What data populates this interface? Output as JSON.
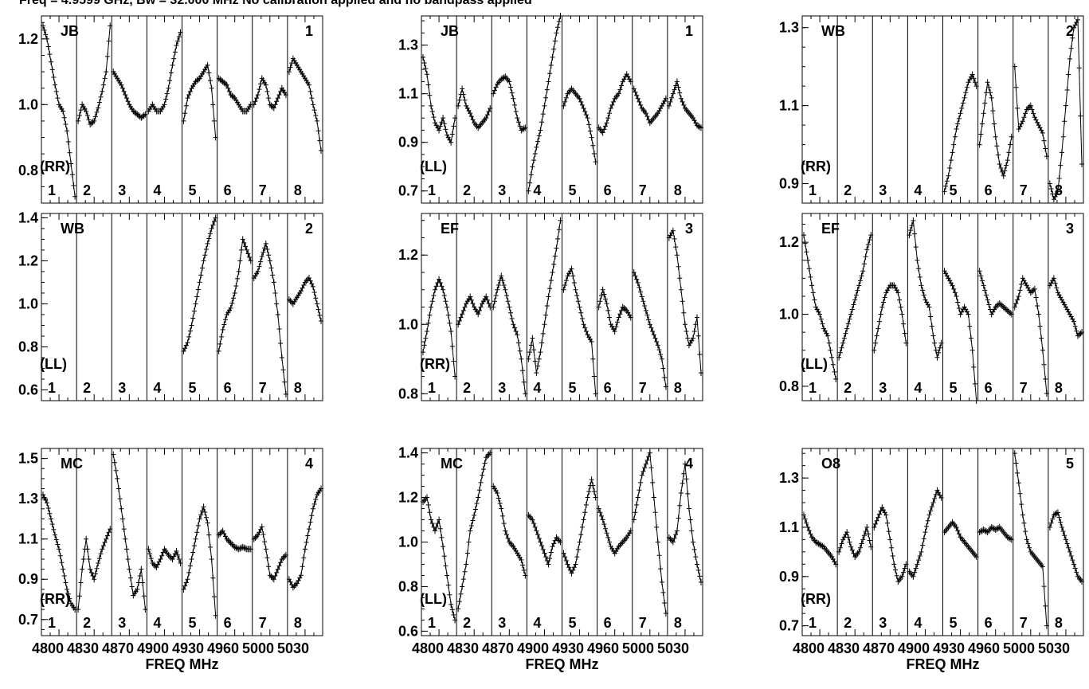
{
  "title": "Freq = 4.9599 GHz, Bw = 32.000 MHz   No calibration applied and no bandpass applied",
  "chart_data": [
    {
      "type": "line",
      "baseline": "JB",
      "stokes": "(RR)",
      "panel_id": "1",
      "ylim": [
        0.7,
        1.27
      ],
      "yticks": [
        0.8,
        1.0,
        1.2
      ],
      "grid": false,
      "xticks": [],
      "xlabel": "",
      "sub_labels": [
        "1",
        "2",
        "3",
        "4",
        "5",
        "6",
        "7",
        "8"
      ],
      "subbands": [
        [
          1.24,
          1.2,
          1.13,
          1.06,
          1.0,
          0.98,
          0.92,
          0.82,
          0.72
        ],
        [
          0.95,
          1.0,
          0.98,
          0.94,
          0.95,
          0.99,
          1.04,
          1.1,
          1.24
        ],
        [
          1.1,
          1.08,
          1.06,
          1.03,
          1.0,
          0.98,
          0.97,
          0.96,
          0.97
        ],
        [
          0.98,
          1.0,
          0.98,
          0.98,
          1.0,
          1.05,
          1.12,
          1.18,
          1.22
        ],
        [
          0.95,
          1.02,
          1.05,
          1.07,
          1.08,
          1.1,
          1.12,
          1.05,
          0.9
        ],
        [
          1.08,
          1.07,
          1.06,
          1.03,
          1.02,
          1.0,
          0.98,
          0.98,
          1.0
        ],
        [
          1.0,
          1.03,
          1.08,
          1.06,
          1.0,
          0.99,
          1.02,
          1.05,
          1.03
        ],
        [
          1.1,
          1.14,
          1.12,
          1.1,
          1.08,
          1.06,
          1.0,
          0.95,
          0.86
        ]
      ]
    },
    {
      "type": "line",
      "baseline": "JB",
      "stokes": "(LL)",
      "panel_id": "1",
      "ylim": [
        0.65,
        1.42
      ],
      "yticks": [
        0.7,
        0.9,
        1.1,
        1.3
      ],
      "grid": false,
      "xticks": [],
      "xlabel": "",
      "sub_labels": [
        "1",
        "2",
        "3",
        "4",
        "5",
        "6",
        "7",
        "8"
      ],
      "subbands": [
        [
          1.25,
          1.18,
          1.05,
          0.98,
          0.95,
          1.0,
          0.93,
          0.9,
          1.0
        ],
        [
          1.05,
          1.12,
          1.05,
          1.02,
          0.98,
          0.96,
          0.98,
          1.0,
          1.04
        ],
        [
          1.1,
          1.14,
          1.16,
          1.17,
          1.15,
          1.08,
          1.0,
          0.95,
          0.96
        ],
        [
          0.7,
          0.8,
          0.88,
          0.95,
          1.05,
          1.15,
          1.25,
          1.35,
          1.42
        ],
        [
          1.05,
          1.1,
          1.12,
          1.1,
          1.08,
          1.04,
          1.0,
          0.92,
          0.82
        ],
        [
          0.96,
          0.94,
          0.98,
          1.04,
          1.08,
          1.1,
          1.15,
          1.18,
          1.15
        ],
        [
          1.12,
          1.08,
          1.04,
          1.02,
          0.98,
          1.0,
          1.02,
          1.05,
          1.08
        ],
        [
          1.05,
          1.1,
          1.15,
          1.08,
          1.04,
          1.02,
          1.0,
          0.97,
          0.96
        ]
      ]
    },
    {
      "type": "line",
      "baseline": "WB",
      "stokes": "(RR)",
      "panel_id": "2",
      "ylim": [
        0.85,
        1.33
      ],
      "yticks": [
        0.9,
        1.1,
        1.3
      ],
      "grid": false,
      "xticks": [],
      "xlabel": "",
      "sub_labels": [
        "1",
        "2",
        "3",
        "4",
        "5",
        "6",
        "7",
        "8"
      ],
      "subbands": [
        [],
        [],
        [],
        [],
        [
          0.88,
          0.92,
          0.98,
          1.04,
          1.08,
          1.12,
          1.16,
          1.18,
          1.15
        ],
        [
          1.0,
          1.08,
          1.16,
          1.12,
          1.02,
          0.95,
          0.92,
          0.96,
          1.02
        ],
        [
          1.2,
          1.04,
          1.06,
          1.09,
          1.1,
          1.07,
          1.05,
          1.03,
          0.97
        ],
        [
          0.9,
          0.86,
          0.88,
          0.98,
          1.1,
          1.22,
          1.3,
          1.32,
          0.95
        ]
      ]
    },
    {
      "type": "line",
      "baseline": "WB",
      "stokes": "(LL)",
      "panel_id": "2",
      "ylim": [
        0.55,
        1.42
      ],
      "yticks": [
        0.6,
        0.8,
        1.0,
        1.2,
        1.4
      ],
      "grid": false,
      "xticks": [],
      "xlabel": "",
      "sub_labels": [
        "1",
        "2",
        "3",
        "4",
        "5",
        "6",
        "7",
        "8"
      ],
      "subbands": [
        [],
        [],
        [],
        [],
        [
          0.78,
          0.82,
          0.9,
          1.0,
          1.1,
          1.2,
          1.28,
          1.35,
          1.4
        ],
        [
          0.78,
          0.88,
          0.95,
          0.98,
          1.05,
          1.15,
          1.3,
          1.25,
          1.2
        ],
        [
          1.12,
          1.15,
          1.22,
          1.28,
          1.2,
          1.1,
          0.95,
          0.75,
          0.58
        ],
        [
          1.02,
          1.0,
          1.03,
          1.06,
          1.1,
          1.12,
          1.08,
          1.0,
          0.92
        ]
      ]
    },
    {
      "type": "line",
      "baseline": "EF",
      "stokes": "(RR)",
      "panel_id": "3",
      "ylim": [
        0.78,
        1.32
      ],
      "yticks": [
        0.8,
        1.0,
        1.2
      ],
      "grid": false,
      "xticks": [],
      "xlabel": "",
      "sub_labels": [
        "1",
        "2",
        "3",
        "4",
        "5",
        "6",
        "7",
        "8"
      ],
      "subbands": [
        [
          0.92,
          0.98,
          1.05,
          1.1,
          1.13,
          1.1,
          1.05,
          0.98,
          0.85
        ],
        [
          1.0,
          1.03,
          1.06,
          1.08,
          1.05,
          1.03,
          1.06,
          1.08,
          1.05
        ],
        [
          1.05,
          1.1,
          1.14,
          1.1,
          1.05,
          1.0,
          0.97,
          0.9,
          0.8
        ],
        [
          0.9,
          0.96,
          0.86,
          0.92,
          1.0,
          1.08,
          1.15,
          1.22,
          1.3
        ],
        [
          1.1,
          1.14,
          1.16,
          1.1,
          1.05,
          1.0,
          0.97,
          0.95,
          0.8
        ],
        [
          1.05,
          1.1,
          1.06,
          1.0,
          0.98,
          1.02,
          1.05,
          1.04,
          1.02
        ],
        [
          1.15,
          1.12,
          1.08,
          1.04,
          1.0,
          0.97,
          0.94,
          0.9,
          0.82
        ],
        [
          1.25,
          1.27,
          1.2,
          1.1,
          1.0,
          0.94,
          0.96,
          1.02,
          0.86
        ]
      ]
    },
    {
      "type": "line",
      "baseline": "EF",
      "stokes": "(LL)",
      "panel_id": "3",
      "ylim": [
        0.76,
        1.28
      ],
      "yticks": [
        0.8,
        1.0,
        1.2
      ],
      "grid": false,
      "xticks": [],
      "xlabel": "",
      "sub_labels": [
        "1",
        "2",
        "3",
        "4",
        "5",
        "6",
        "7",
        "8"
      ],
      "subbands": [
        [
          1.22,
          1.15,
          1.08,
          1.02,
          1.0,
          0.96,
          0.94,
          0.88,
          0.82
        ],
        [
          0.88,
          0.92,
          0.96,
          1.0,
          1.04,
          1.08,
          1.12,
          1.18,
          1.22
        ],
        [
          0.9,
          0.96,
          1.02,
          1.06,
          1.08,
          1.08,
          1.06,
          1.0,
          0.92
        ],
        [
          1.22,
          1.26,
          1.15,
          1.08,
          1.04,
          1.02,
          0.94,
          0.88,
          0.92
        ],
        [
          1.12,
          1.1,
          1.08,
          1.05,
          1.0,
          1.02,
          1.0,
          0.9,
          0.76
        ],
        [
          1.12,
          1.08,
          1.04,
          1.0,
          1.02,
          1.03,
          1.02,
          1.01,
          1.0
        ],
        [
          1.02,
          1.05,
          1.1,
          1.08,
          1.06,
          1.07,
          1.0,
          0.9,
          0.78
        ],
        [
          1.08,
          1.1,
          1.06,
          1.04,
          1.02,
          1.0,
          0.98,
          0.94,
          0.95
        ]
      ]
    },
    {
      "type": "line",
      "baseline": "MC",
      "stokes": "(RR)",
      "panel_id": "4",
      "ylim": [
        0.62,
        1.55
      ],
      "yticks": [
        0.7,
        0.9,
        1.1,
        1.3,
        1.5
      ],
      "grid": false,
      "xticks": [
        "4800",
        "4830",
        "4870",
        "4900",
        "4930",
        "4960",
        "5000",
        "5030"
      ],
      "xlabel": "FREQ MHz",
      "sub_labels": [
        "1",
        "2",
        "3",
        "4",
        "5",
        "6",
        "7",
        "8"
      ],
      "subbands": [
        [
          1.32,
          1.28,
          1.2,
          1.12,
          1.05,
          0.95,
          0.85,
          0.78,
          0.75
        ],
        [
          0.75,
          0.95,
          1.1,
          0.95,
          0.9,
          0.98,
          1.05,
          1.1,
          1.15
        ],
        [
          1.52,
          1.4,
          1.25,
          1.1,
          0.95,
          0.82,
          0.85,
          0.95,
          0.75
        ],
        [
          1.05,
          0.98,
          0.96,
          1.0,
          1.05,
          1.02,
          1.0,
          1.04,
          0.98
        ],
        [
          0.85,
          0.9,
          1.0,
          1.1,
          1.2,
          1.26,
          1.18,
          1.0,
          0.72
        ],
        [
          1.12,
          1.14,
          1.1,
          1.08,
          1.06,
          1.05,
          1.06,
          1.05,
          1.05
        ],
        [
          1.1,
          1.12,
          1.16,
          1.05,
          0.92,
          0.9,
          0.95,
          1.0,
          1.02
        ],
        [
          0.9,
          0.86,
          0.88,
          0.92,
          1.05,
          1.15,
          1.25,
          1.32,
          1.35
        ]
      ]
    },
    {
      "type": "line",
      "baseline": "MC",
      "stokes": "(LL)",
      "panel_id": "4",
      "ylim": [
        0.58,
        1.42
      ],
      "yticks": [
        0.6,
        0.8,
        1.0,
        1.2,
        1.4
      ],
      "grid": false,
      "xticks": [
        "4800",
        "4830",
        "4870",
        "4900",
        "4930",
        "4960",
        "5000",
        "5030"
      ],
      "xlabel": "FREQ MHz",
      "sub_labels": [
        "1",
        "2",
        "3",
        "4",
        "5",
        "6",
        "7",
        "8"
      ],
      "subbands": [
        [
          1.18,
          1.2,
          1.1,
          1.05,
          1.1,
          0.98,
          0.85,
          0.72,
          0.65
        ],
        [
          0.7,
          0.8,
          0.9,
          1.05,
          1.12,
          1.2,
          1.3,
          1.38,
          1.4
        ],
        [
          1.25,
          1.22,
          1.15,
          1.05,
          1.0,
          0.98,
          0.95,
          0.92,
          0.85
        ],
        [
          1.12,
          1.1,
          1.05,
          1.0,
          0.95,
          0.9,
          0.98,
          1.02,
          1.0
        ],
        [
          0.95,
          0.9,
          0.86,
          0.9,
          1.0,
          1.1,
          1.2,
          1.28,
          1.2
        ],
        [
          1.15,
          1.1,
          1.04,
          0.98,
          0.95,
          0.98,
          1.0,
          1.02,
          1.05
        ],
        [
          1.1,
          1.2,
          1.3,
          1.35,
          1.4,
          1.2,
          1.0,
          0.82,
          0.68
        ],
        [
          1.02,
          1.0,
          1.05,
          1.22,
          1.35,
          1.15,
          1.0,
          0.9,
          0.82
        ]
      ]
    },
    {
      "type": "line",
      "baseline": "O8",
      "stokes": "(RR)",
      "panel_id": "5",
      "ylim": [
        0.66,
        1.42
      ],
      "yticks": [
        0.7,
        0.9,
        1.1,
        1.3
      ],
      "grid": false,
      "xticks": [
        "4800",
        "4830",
        "4870",
        "4900",
        "4930",
        "4960",
        "5000",
        "5030"
      ],
      "xlabel": "FREQ MHz",
      "sub_labels": [
        "1",
        "2",
        "3",
        "4",
        "5",
        "6",
        "7",
        "8"
      ],
      "subbands": [
        [
          1.15,
          1.1,
          1.06,
          1.04,
          1.03,
          1.02,
          1.0,
          0.98,
          0.95
        ],
        [
          1.0,
          1.05,
          1.08,
          1.02,
          0.98,
          1.0,
          1.05,
          1.1,
          1.02
        ],
        [
          1.1,
          1.14,
          1.18,
          1.15,
          1.05,
          0.95,
          0.88,
          0.9,
          0.95
        ],
        [
          0.92,
          0.9,
          0.95,
          1.0,
          1.08,
          1.15,
          1.2,
          1.25,
          1.22
        ],
        [
          1.08,
          1.1,
          1.12,
          1.1,
          1.06,
          1.04,
          1.02,
          1.0,
          0.98
        ],
        [
          1.08,
          1.09,
          1.08,
          1.1,
          1.09,
          1.1,
          1.08,
          1.06,
          1.05
        ],
        [
          1.4,
          1.28,
          1.15,
          1.05,
          1.0,
          0.98,
          0.96,
          0.94,
          0.7
        ],
        [
          1.1,
          1.15,
          1.16,
          1.1,
          1.05,
          1.0,
          0.95,
          0.9,
          0.88
        ]
      ]
    }
  ]
}
